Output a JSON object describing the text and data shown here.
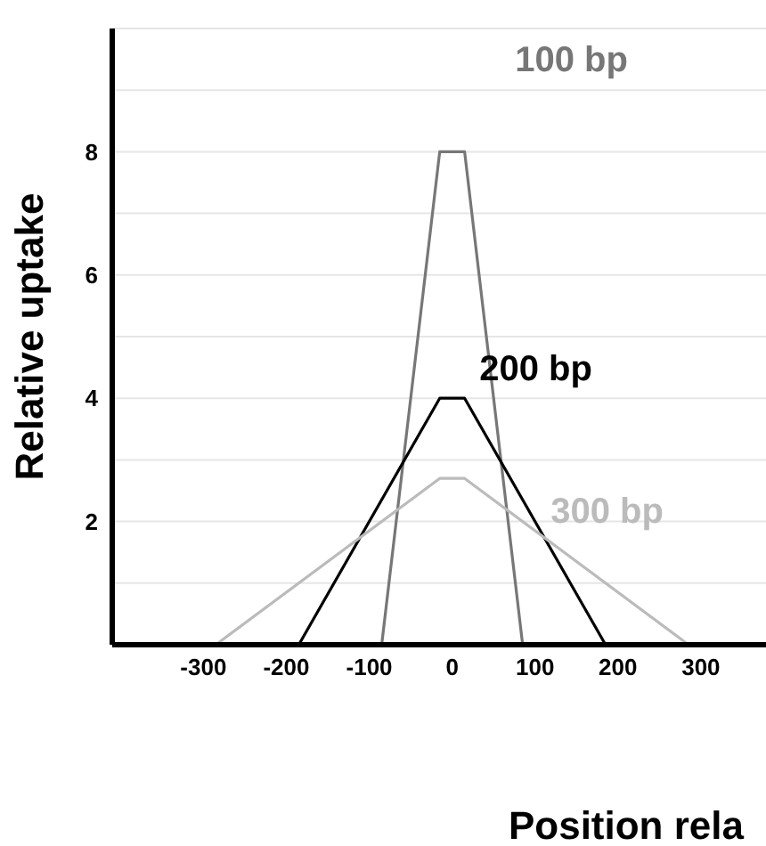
{
  "chart_data": {
    "type": "line",
    "ylabel": "Relative uptake",
    "xlabel": "Position rela",
    "series": [
      {
        "name": "100 bp",
        "color": "#777777",
        "x": [
          -410,
          -85,
          -15,
          15,
          85,
          400
        ],
        "values": [
          0,
          0,
          8,
          8,
          0,
          0
        ]
      },
      {
        "name": "200 bp",
        "color": "#000000",
        "x": [
          -410,
          -185,
          -15,
          15,
          185,
          400
        ],
        "values": [
          0,
          0,
          4,
          4,
          0,
          0
        ]
      },
      {
        "name": "300 bp",
        "color": "#bbbbbb",
        "x": [
          -410,
          -285,
          -15,
          15,
          285,
          400
        ],
        "values": [
          0,
          0,
          2.7,
          2.7,
          0,
          0
        ]
      }
    ],
    "xlim": [
      -410,
      400
    ],
    "xticks": [
      -300,
      -200,
      -100,
      0,
      100,
      200,
      300
    ],
    "ylim": [
      0,
      10
    ],
    "yticks": [
      {
        "value": 1,
        "label": null
      },
      2,
      {
        "value": 3,
        "label": null
      },
      4,
      {
        "value": 5,
        "label": null
      },
      6,
      {
        "value": 7,
        "label": null
      },
      8,
      {
        "value": 9,
        "label": null
      }
    ],
    "grid": true,
    "marker": "none",
    "line_style": "solid",
    "legend": false
  }
}
